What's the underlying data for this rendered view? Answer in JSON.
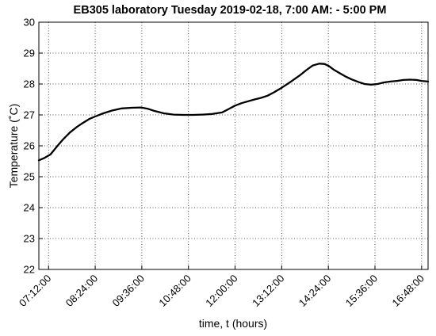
{
  "chart_data": {
    "type": "line",
    "title": "EB305 laboratory Tuesday 2019-02-18, 7:00 AM: - 5:00 PM",
    "xlabel": "time, t (hours)",
    "ylabel": "Temperature (˚C)",
    "xlim": [
      "06:57:00",
      "16:58:00"
    ],
    "ylim": [
      22,
      30
    ],
    "grid": true,
    "x_ticks": [
      "07:12:00",
      "08:24:00",
      "09:36:00",
      "10:48:00",
      "12:00:00",
      "13:12:00",
      "14:24:00",
      "15:36:00",
      "16:48:00"
    ],
    "y_ticks": [
      22,
      23,
      24,
      25,
      26,
      27,
      28,
      29,
      30
    ],
    "series": [
      {
        "x": [
          "06:57:00",
          "07:05:00",
          "07:15:00",
          "07:25:00",
          "07:35:00",
          "07:45:00",
          "07:55:00",
          "08:05:00",
          "08:15:00",
          "08:24:00",
          "08:35:00",
          "08:50:00",
          "09:05:00",
          "09:20:00",
          "09:35:00",
          "09:45:00",
          "09:55:00",
          "10:10:00",
          "10:25:00",
          "10:40:00",
          "10:55:00",
          "11:10:00",
          "11:25:00",
          "11:40:00",
          "11:50:00",
          "12:00:00",
          "12:10:00",
          "12:20:00",
          "12:30:00",
          "12:40:00",
          "12:50:00",
          "13:00:00",
          "13:12:00",
          "13:25:00",
          "13:40:00",
          "13:50:00",
          "14:00:00",
          "14:10:00",
          "14:18:00",
          "14:25:00",
          "14:32:00",
          "14:40:00",
          "14:50:00",
          "15:00:00",
          "15:10:00",
          "15:20:00",
          "15:30:00",
          "15:40:00",
          "15:50:00",
          "16:00:00",
          "16:10:00",
          "16:20:00",
          "16:30:00",
          "16:40:00",
          "16:48:00",
          "16:58:00"
        ],
        "y": [
          25.53,
          25.6,
          25.72,
          25.98,
          26.22,
          26.43,
          26.6,
          26.74,
          26.87,
          26.95,
          27.04,
          27.14,
          27.21,
          27.23,
          27.24,
          27.2,
          27.13,
          27.05,
          27.01,
          27.0,
          27.0,
          27.01,
          27.03,
          27.08,
          27.19,
          27.3,
          27.38,
          27.44,
          27.5,
          27.55,
          27.62,
          27.73,
          27.88,
          28.06,
          28.28,
          28.45,
          28.6,
          28.66,
          28.65,
          28.58,
          28.47,
          28.37,
          28.25,
          28.15,
          28.07,
          28.0,
          27.98,
          28.0,
          28.05,
          28.08,
          28.1,
          28.13,
          28.14,
          28.13,
          28.1,
          28.08
        ]
      }
    ]
  }
}
